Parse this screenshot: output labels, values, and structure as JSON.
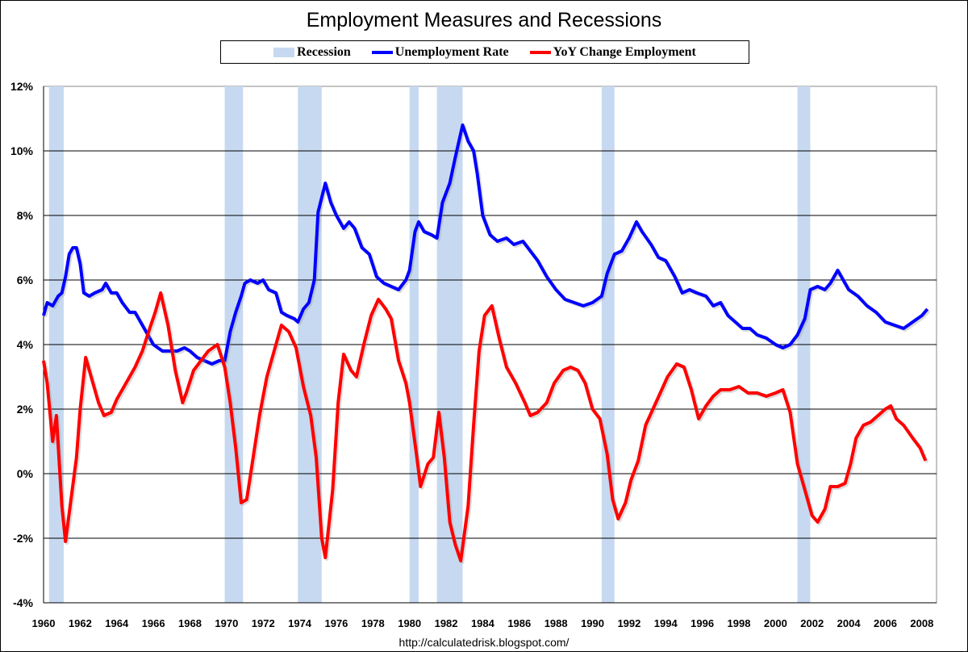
{
  "chart_data": {
    "type": "line",
    "title": "Employment Measures and Recessions",
    "xlabel": "",
    "ylabel": "",
    "xlim": [
      1960,
      2008.8
    ],
    "ylim": [
      -4,
      12
    ],
    "y_ticks": [
      "12%",
      "10%",
      "8%",
      "6%",
      "4%",
      "2%",
      "0%",
      "-2%",
      "-4%"
    ],
    "y_tick_values": [
      12,
      10,
      8,
      6,
      4,
      2,
      0,
      -2,
      -4
    ],
    "x_ticks": [
      "1960",
      "1962",
      "1964",
      "1966",
      "1968",
      "1970",
      "1972",
      "1974",
      "1976",
      "1978",
      "1980",
      "1982",
      "1984",
      "1986",
      "1988",
      "1990",
      "1992",
      "1994",
      "1996",
      "1998",
      "2000",
      "2002",
      "2004",
      "2006",
      "2008"
    ],
    "grid": "horizontal",
    "legend_placement": "top-center",
    "legend": {
      "recession": "Recession",
      "unemployment": "Unemployment Rate",
      "yoy": "YoY Change Employment"
    },
    "colors": {
      "recession": "#c6d9f0",
      "unemployment": "#0000ff",
      "yoy": "#ff0000"
    },
    "recessions": [
      [
        1960.3,
        1961.1
      ],
      [
        1969.9,
        1970.9
      ],
      [
        1973.9,
        1975.2
      ],
      [
        1980.0,
        1980.5
      ],
      [
        1981.5,
        1982.9
      ],
      [
        1990.5,
        1991.2
      ],
      [
        2001.2,
        2001.9
      ]
    ],
    "series": [
      {
        "name": "Unemployment Rate",
        "points": [
          [
            1960.0,
            4.9
          ],
          [
            1960.2,
            5.3
          ],
          [
            1960.5,
            5.2
          ],
          [
            1960.8,
            5.5
          ],
          [
            1961.0,
            5.6
          ],
          [
            1961.2,
            6.1
          ],
          [
            1961.4,
            6.8
          ],
          [
            1961.6,
            7.0
          ],
          [
            1961.8,
            7.0
          ],
          [
            1962.0,
            6.5
          ],
          [
            1962.2,
            5.6
          ],
          [
            1962.5,
            5.5
          ],
          [
            1962.8,
            5.6
          ],
          [
            1963.2,
            5.7
          ],
          [
            1963.4,
            5.9
          ],
          [
            1963.7,
            5.6
          ],
          [
            1964.0,
            5.6
          ],
          [
            1964.3,
            5.3
          ],
          [
            1964.7,
            5.0
          ],
          [
            1965.0,
            5.0
          ],
          [
            1965.3,
            4.7
          ],
          [
            1965.7,
            4.3
          ],
          [
            1966.0,
            4.0
          ],
          [
            1966.5,
            3.8
          ],
          [
            1967.0,
            3.8
          ],
          [
            1967.3,
            3.8
          ],
          [
            1967.7,
            3.9
          ],
          [
            1968.0,
            3.8
          ],
          [
            1968.4,
            3.6
          ],
          [
            1968.8,
            3.5
          ],
          [
            1969.2,
            3.4
          ],
          [
            1969.6,
            3.5
          ],
          [
            1969.9,
            3.5
          ],
          [
            1970.2,
            4.4
          ],
          [
            1970.5,
            5.0
          ],
          [
            1970.8,
            5.5
          ],
          [
            1971.0,
            5.9
          ],
          [
            1971.3,
            6.0
          ],
          [
            1971.7,
            5.9
          ],
          [
            1972.0,
            6.0
          ],
          [
            1972.3,
            5.7
          ],
          [
            1972.7,
            5.6
          ],
          [
            1973.0,
            5.0
          ],
          [
            1973.3,
            4.9
          ],
          [
            1973.7,
            4.8
          ],
          [
            1973.9,
            4.7
          ],
          [
            1974.2,
            5.1
          ],
          [
            1974.5,
            5.3
          ],
          [
            1974.8,
            6.0
          ],
          [
            1975.0,
            8.1
          ],
          [
            1975.4,
            9.0
          ],
          [
            1975.7,
            8.4
          ],
          [
            1976.0,
            8.0
          ],
          [
            1976.4,
            7.6
          ],
          [
            1976.7,
            7.8
          ],
          [
            1977.0,
            7.6
          ],
          [
            1977.4,
            7.0
          ],
          [
            1977.8,
            6.8
          ],
          [
            1978.2,
            6.1
          ],
          [
            1978.6,
            5.9
          ],
          [
            1979.0,
            5.8
          ],
          [
            1979.4,
            5.7
          ],
          [
            1979.8,
            6.0
          ],
          [
            1980.0,
            6.3
          ],
          [
            1980.3,
            7.5
          ],
          [
            1980.5,
            7.8
          ],
          [
            1980.8,
            7.5
          ],
          [
            1981.2,
            7.4
          ],
          [
            1981.5,
            7.3
          ],
          [
            1981.8,
            8.4
          ],
          [
            1982.2,
            9.0
          ],
          [
            1982.5,
            9.8
          ],
          [
            1982.9,
            10.8
          ],
          [
            1983.2,
            10.3
          ],
          [
            1983.5,
            10.0
          ],
          [
            1983.7,
            9.3
          ],
          [
            1984.0,
            8.0
          ],
          [
            1984.4,
            7.4
          ],
          [
            1984.8,
            7.2
          ],
          [
            1985.3,
            7.3
          ],
          [
            1985.7,
            7.1
          ],
          [
            1986.2,
            7.2
          ],
          [
            1986.6,
            6.9
          ],
          [
            1987.0,
            6.6
          ],
          [
            1987.5,
            6.1
          ],
          [
            1988.0,
            5.7
          ],
          [
            1988.5,
            5.4
          ],
          [
            1989.0,
            5.3
          ],
          [
            1989.5,
            5.2
          ],
          [
            1990.0,
            5.3
          ],
          [
            1990.5,
            5.5
          ],
          [
            1990.8,
            6.2
          ],
          [
            1991.2,
            6.8
          ],
          [
            1991.6,
            6.9
          ],
          [
            1992.0,
            7.3
          ],
          [
            1992.4,
            7.8
          ],
          [
            1992.7,
            7.5
          ],
          [
            1993.2,
            7.1
          ],
          [
            1993.6,
            6.7
          ],
          [
            1994.0,
            6.6
          ],
          [
            1994.5,
            6.1
          ],
          [
            1994.9,
            5.6
          ],
          [
            1995.3,
            5.7
          ],
          [
            1995.7,
            5.6
          ],
          [
            1996.2,
            5.5
          ],
          [
            1996.6,
            5.2
          ],
          [
            1997.0,
            5.3
          ],
          [
            1997.4,
            4.9
          ],
          [
            1997.8,
            4.7
          ],
          [
            1998.2,
            4.5
          ],
          [
            1998.6,
            4.5
          ],
          [
            1999.0,
            4.3
          ],
          [
            1999.5,
            4.2
          ],
          [
            2000.0,
            4.0
          ],
          [
            2000.4,
            3.9
          ],
          [
            2000.8,
            4.0
          ],
          [
            2001.2,
            4.3
          ],
          [
            2001.6,
            4.8
          ],
          [
            2001.9,
            5.7
          ],
          [
            2002.3,
            5.8
          ],
          [
            2002.7,
            5.7
          ],
          [
            2003.0,
            5.9
          ],
          [
            2003.4,
            6.3
          ],
          [
            2003.7,
            6.0
          ],
          [
            2004.0,
            5.7
          ],
          [
            2004.5,
            5.5
          ],
          [
            2005.0,
            5.2
          ],
          [
            2005.5,
            5.0
          ],
          [
            2006.0,
            4.7
          ],
          [
            2006.5,
            4.6
          ],
          [
            2007.0,
            4.5
          ],
          [
            2007.5,
            4.7
          ],
          [
            2008.0,
            4.9
          ],
          [
            2008.3,
            5.1
          ]
        ]
      },
      {
        "name": "YoY Change Employment",
        "points": [
          [
            1960.0,
            3.5
          ],
          [
            1960.2,
            2.8
          ],
          [
            1960.5,
            1.0
          ],
          [
            1960.7,
            1.8
          ],
          [
            1961.0,
            -1.0
          ],
          [
            1961.2,
            -2.1
          ],
          [
            1961.5,
            -0.8
          ],
          [
            1961.8,
            0.5
          ],
          [
            1962.0,
            2.0
          ],
          [
            1962.3,
            3.6
          ],
          [
            1962.6,
            3.0
          ],
          [
            1963.0,
            2.2
          ],
          [
            1963.3,
            1.8
          ],
          [
            1963.7,
            1.9
          ],
          [
            1964.0,
            2.3
          ],
          [
            1964.5,
            2.8
          ],
          [
            1965.0,
            3.3
          ],
          [
            1965.4,
            3.8
          ],
          [
            1965.8,
            4.5
          ],
          [
            1966.1,
            5.0
          ],
          [
            1966.4,
            5.6
          ],
          [
            1966.8,
            4.6
          ],
          [
            1967.2,
            3.2
          ],
          [
            1967.6,
            2.2
          ],
          [
            1967.8,
            2.5
          ],
          [
            1968.2,
            3.2
          ],
          [
            1968.6,
            3.5
          ],
          [
            1969.0,
            3.8
          ],
          [
            1969.5,
            4.0
          ],
          [
            1969.9,
            3.3
          ],
          [
            1970.2,
            2.2
          ],
          [
            1970.5,
            0.8
          ],
          [
            1970.8,
            -0.9
          ],
          [
            1971.1,
            -0.8
          ],
          [
            1971.4,
            0.3
          ],
          [
            1971.8,
            1.8
          ],
          [
            1972.2,
            3.0
          ],
          [
            1972.6,
            3.8
          ],
          [
            1973.0,
            4.6
          ],
          [
            1973.4,
            4.4
          ],
          [
            1973.8,
            3.9
          ],
          [
            1974.2,
            2.7
          ],
          [
            1974.6,
            1.8
          ],
          [
            1974.9,
            0.5
          ],
          [
            1975.2,
            -2.0
          ],
          [
            1975.4,
            -2.6
          ],
          [
            1975.8,
            -0.5
          ],
          [
            1976.1,
            2.2
          ],
          [
            1976.4,
            3.7
          ],
          [
            1976.8,
            3.2
          ],
          [
            1977.1,
            3.0
          ],
          [
            1977.5,
            4.0
          ],
          [
            1977.9,
            4.9
          ],
          [
            1978.3,
            5.4
          ],
          [
            1978.7,
            5.1
          ],
          [
            1979.0,
            4.8
          ],
          [
            1979.4,
            3.5
          ],
          [
            1979.8,
            2.8
          ],
          [
            1980.0,
            2.2
          ],
          [
            1980.4,
            0.5
          ],
          [
            1980.6,
            -0.4
          ],
          [
            1981.0,
            0.3
          ],
          [
            1981.3,
            0.5
          ],
          [
            1981.6,
            1.9
          ],
          [
            1981.9,
            0.5
          ],
          [
            1982.2,
            -1.5
          ],
          [
            1982.5,
            -2.2
          ],
          [
            1982.8,
            -2.7
          ],
          [
            1983.2,
            -1.0
          ],
          [
            1983.5,
            1.5
          ],
          [
            1983.8,
            3.8
          ],
          [
            1984.1,
            4.9
          ],
          [
            1984.5,
            5.2
          ],
          [
            1984.9,
            4.2
          ],
          [
            1985.3,
            3.3
          ],
          [
            1985.8,
            2.8
          ],
          [
            1986.3,
            2.2
          ],
          [
            1986.6,
            1.8
          ],
          [
            1987.0,
            1.9
          ],
          [
            1987.5,
            2.2
          ],
          [
            1987.9,
            2.8
          ],
          [
            1988.4,
            3.2
          ],
          [
            1988.8,
            3.3
          ],
          [
            1989.2,
            3.2
          ],
          [
            1989.6,
            2.8
          ],
          [
            1990.0,
            2.0
          ],
          [
            1990.4,
            1.7
          ],
          [
            1990.8,
            0.6
          ],
          [
            1991.1,
            -0.8
          ],
          [
            1991.4,
            -1.4
          ],
          [
            1991.8,
            -0.9
          ],
          [
            1992.1,
            -0.2
          ],
          [
            1992.5,
            0.4
          ],
          [
            1992.9,
            1.5
          ],
          [
            1993.3,
            2.0
          ],
          [
            1993.7,
            2.5
          ],
          [
            1994.1,
            3.0
          ],
          [
            1994.6,
            3.4
          ],
          [
            1995.0,
            3.3
          ],
          [
            1995.4,
            2.6
          ],
          [
            1995.8,
            1.7
          ],
          [
            1996.2,
            2.1
          ],
          [
            1996.6,
            2.4
          ],
          [
            1997.0,
            2.6
          ],
          [
            1997.5,
            2.6
          ],
          [
            1998.0,
            2.7
          ],
          [
            1998.5,
            2.5
          ],
          [
            1999.0,
            2.5
          ],
          [
            1999.5,
            2.4
          ],
          [
            2000.0,
            2.5
          ],
          [
            2000.4,
            2.6
          ],
          [
            2000.8,
            1.9
          ],
          [
            2001.2,
            0.3
          ],
          [
            2001.6,
            -0.5
          ],
          [
            2002.0,
            -1.3
          ],
          [
            2002.3,
            -1.5
          ],
          [
            2002.7,
            -1.1
          ],
          [
            2003.0,
            -0.4
          ],
          [
            2003.4,
            -0.4
          ],
          [
            2003.8,
            -0.3
          ],
          [
            2004.1,
            0.3
          ],
          [
            2004.4,
            1.1
          ],
          [
            2004.8,
            1.5
          ],
          [
            2005.2,
            1.6
          ],
          [
            2005.6,
            1.8
          ],
          [
            2006.0,
            2.0
          ],
          [
            2006.3,
            2.1
          ],
          [
            2006.6,
            1.7
          ],
          [
            2007.0,
            1.5
          ],
          [
            2007.5,
            1.1
          ],
          [
            2007.9,
            0.8
          ],
          [
            2008.2,
            0.4
          ]
        ]
      }
    ],
    "source": "http://calculatedrisk.blogspot.com/"
  }
}
